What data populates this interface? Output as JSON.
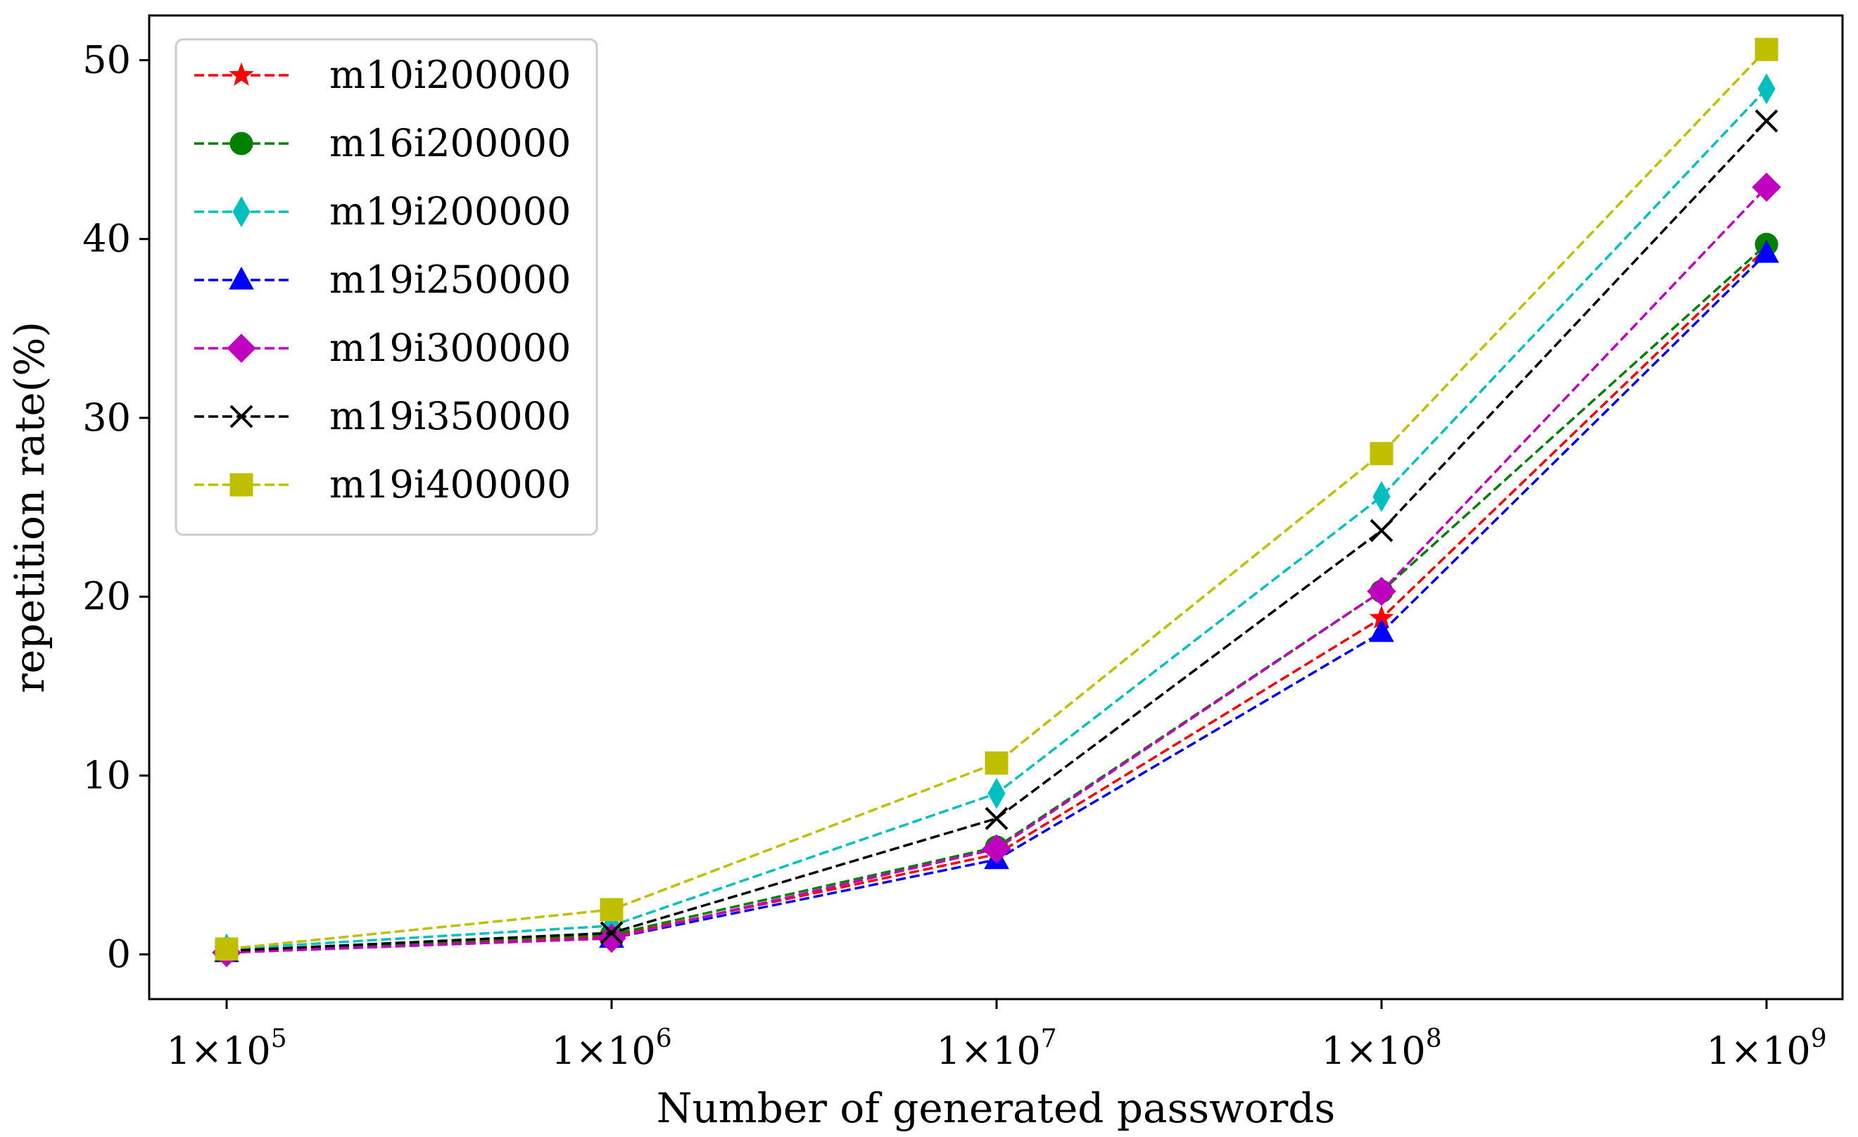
{
  "chart_data": {
    "type": "line",
    "title": "",
    "xlabel": "Number of generated passwords",
    "ylabel": "repetition rate(%)",
    "x": [
      100000,
      1000000,
      10000000,
      100000000,
      1000000000
    ],
    "x_tick_labels": [
      {
        "base": "1×10",
        "exp": "5"
      },
      {
        "base": "1×10",
        "exp": "6"
      },
      {
        "base": "1×10",
        "exp": "7"
      },
      {
        "base": "1×10",
        "exp": "8"
      },
      {
        "base": "1×10",
        "exp": "9"
      }
    ],
    "xscale": "log",
    "ylim": [
      -2.5,
      52.5
    ],
    "y_ticks": [
      0,
      10,
      20,
      30,
      40,
      50
    ],
    "grid": false,
    "legend_position": "top-left",
    "series": [
      {
        "name": "m10i200000",
        "color": "#ff0000",
        "marker": "star",
        "values": [
          0.2,
          1.0,
          5.6,
          18.8,
          39.5
        ]
      },
      {
        "name": "m16i200000",
        "color": "#008000",
        "marker": "circle",
        "values": [
          0.2,
          1.1,
          6.0,
          20.3,
          39.7
        ]
      },
      {
        "name": "m19i200000",
        "color": "#00bfbf",
        "marker": "thin-diamond",
        "values": [
          0.3,
          1.6,
          9.0,
          25.6,
          48.4
        ]
      },
      {
        "name": "m19i250000",
        "color": "#0000ff",
        "marker": "triangle",
        "values": [
          0.1,
          0.9,
          5.3,
          18.0,
          39.2
        ]
      },
      {
        "name": "m19i300000",
        "color": "#bf00bf",
        "marker": "diamond",
        "values": [
          0.1,
          0.9,
          5.9,
          20.3,
          42.9
        ]
      },
      {
        "name": "m19i350000",
        "color": "#000000",
        "marker": "x",
        "values": [
          0.2,
          1.2,
          7.6,
          23.7,
          46.6
        ]
      },
      {
        "name": "m19i400000",
        "color": "#bfbf00",
        "marker": "square",
        "values": [
          0.3,
          2.5,
          10.7,
          28.0,
          50.6
        ]
      }
    ]
  }
}
